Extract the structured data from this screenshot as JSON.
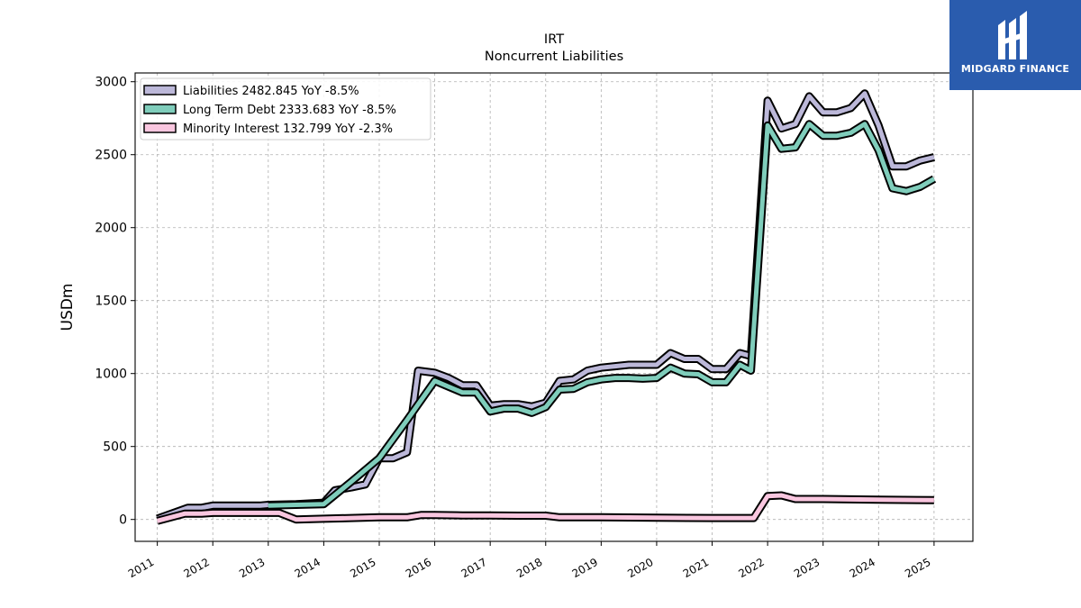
{
  "chart_data": {
    "type": "line",
    "title": "IRT",
    "subtitle": "Noncurrent  Liabilities",
    "ylabel": "USDm",
    "xlabel": "",
    "xlim": [
      2010.6,
      2025.7
    ],
    "ylim": [
      -150,
      3060
    ],
    "yticks": [
      0,
      500,
      1000,
      1500,
      2000,
      2500,
      3000
    ],
    "xticks": [
      "2011",
      "2012",
      "2013",
      "2014",
      "2015",
      "2016",
      "2017",
      "2018",
      "2019",
      "2020",
      "2021",
      "2022",
      "2023",
      "2024",
      "2025"
    ],
    "grid": true,
    "legend_position": "top-left",
    "series": [
      {
        "name": "Liabilities",
        "legend_label": "Liabilities  2482.845 YoY -8.5%",
        "color": "#bcb8d9",
        "x": [
          2011.0,
          2011.55,
          2011.8,
          2012.0,
          2012.5,
          2012.85,
          2013.0,
          2013.5,
          2014.0,
          2014.2,
          2014.5,
          2014.75,
          2015.0,
          2015.25,
          2015.5,
          2015.7,
          2016.0,
          2016.25,
          2016.5,
          2016.75,
          2017.0,
          2017.25,
          2017.5,
          2017.75,
          2018.0,
          2018.25,
          2018.5,
          2018.75,
          2019.0,
          2019.25,
          2019.5,
          2019.75,
          2020.0,
          2020.25,
          2020.5,
          2020.75,
          2021.0,
          2021.25,
          2021.5,
          2021.7,
          2022.0,
          2022.25,
          2022.5,
          2022.75,
          2023.0,
          2023.25,
          2023.5,
          2023.75,
          2024.0,
          2024.25,
          2024.5,
          2024.75,
          2025.0
        ],
        "y": [
          5,
          80,
          80,
          95,
          95,
          95,
          100,
          105,
          115,
          200,
          220,
          240,
          420,
          420,
          460,
          1020,
          1005,
          970,
          920,
          920,
          780,
          790,
          790,
          775,
          800,
          950,
          960,
          1020,
          1040,
          1050,
          1060,
          1060,
          1060,
          1140,
          1100,
          1100,
          1030,
          1030,
          1140,
          1120,
          2870,
          2680,
          2710,
          2900,
          2790,
          2790,
          2820,
          2920,
          2700,
          2420,
          2420,
          2460,
          2483
        ]
      },
      {
        "name": "Long Term Debt",
        "legend_label": "Long Term Debt  2333.683 YoY -8.5%",
        "color": "#7fcdbb",
        "x": [
          2013.0,
          2013.5,
          2014.0,
          2014.5,
          2015.0,
          2015.5,
          2016.0,
          2016.25,
          2016.5,
          2016.75,
          2017.0,
          2017.25,
          2017.5,
          2017.75,
          2018.0,
          2018.25,
          2018.5,
          2018.75,
          2019.0,
          2019.25,
          2019.5,
          2019.75,
          2020.0,
          2020.25,
          2020.5,
          2020.75,
          2021.0,
          2021.25,
          2021.5,
          2021.7,
          2022.0,
          2022.25,
          2022.5,
          2022.75,
          2023.0,
          2023.25,
          2023.5,
          2023.75,
          2024.0,
          2024.25,
          2024.5,
          2024.75,
          2025.0
        ],
        "y": [
          95,
          100,
          105,
          260,
          420,
          680,
          950,
          910,
          870,
          870,
          740,
          760,
          760,
          730,
          770,
          890,
          895,
          940,
          960,
          970,
          970,
          965,
          970,
          1040,
          1000,
          995,
          940,
          940,
          1060,
          1020,
          2700,
          2540,
          2550,
          2710,
          2630,
          2630,
          2650,
          2710,
          2530,
          2270,
          2250,
          2280,
          2334
        ]
      },
      {
        "name": "Minority Interest",
        "legend_label": "Minority Interest  132.799 YoY -2.3%",
        "color": "#f9c6df",
        "x": [
          2011.0,
          2011.5,
          2011.8,
          2012.0,
          2013.0,
          2013.2,
          2013.5,
          2014.0,
          2015.0,
          2015.5,
          2015.75,
          2016.0,
          2016.5,
          2017.0,
          2017.5,
          2018.0,
          2018.25,
          2019.0,
          2020.0,
          2021.0,
          2021.75,
          2022.0,
          2022.25,
          2022.5,
          2023.0,
          2024.0,
          2025.0
        ],
        "y": [
          -10,
          40,
          40,
          45,
          45,
          45,
          0,
          5,
          15,
          15,
          30,
          30,
          28,
          28,
          26,
          26,
          15,
          15,
          12,
          10,
          10,
          160,
          165,
          140,
          140,
          135,
          133
        ]
      }
    ]
  },
  "logo": {
    "text": "MIDGARD FINANCE"
  }
}
